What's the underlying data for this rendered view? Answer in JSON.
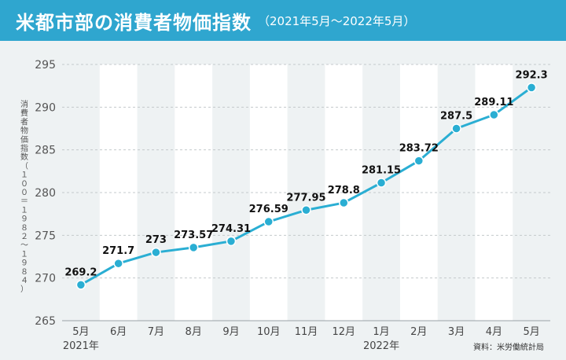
{
  "header": {
    "title": "米都市部の消費者物価指数",
    "subtitle": "（2021年5月～2022年5月）"
  },
  "source_note": "資料：米労働統計局",
  "colors": {
    "header_bg": "#2fa6cf",
    "line": "#2aaed3",
    "band": "#ffffff",
    "background": "#eef2f3"
  },
  "chart_data": {
    "type": "line",
    "title": "米都市部の消費者物価指数",
    "subtitle": "（2021年5月～2022年5月）",
    "ylabel": "消費者物価指数（１００＝１９８２～１９８４）",
    "xlabel": "",
    "ylim": [
      265,
      295
    ],
    "yticks": [
      265,
      270,
      275,
      280,
      285,
      290,
      295
    ],
    "grid": true,
    "categories": [
      "5月",
      "6月",
      "7月",
      "8月",
      "9月",
      "10月",
      "11月",
      "12月",
      "1月",
      "2月",
      "3月",
      "4月",
      "5月"
    ],
    "year_labels": [
      {
        "index": 0,
        "label": "2021年"
      },
      {
        "index": 8,
        "label": "2022年"
      }
    ],
    "series": [
      {
        "name": "消費者物価指数",
        "values": [
          269.2,
          271.7,
          273,
          273.57,
          274.31,
          276.59,
          277.95,
          278.8,
          281.15,
          283.72,
          287.5,
          289.11,
          292.3
        ],
        "labels": [
          "269.2",
          "271.7",
          "273",
          "273.57",
          "274.31",
          "276.59",
          "277.95",
          "278.8",
          "281.15",
          "283.72",
          "287.5",
          "289.11",
          "292.3"
        ]
      }
    ]
  }
}
